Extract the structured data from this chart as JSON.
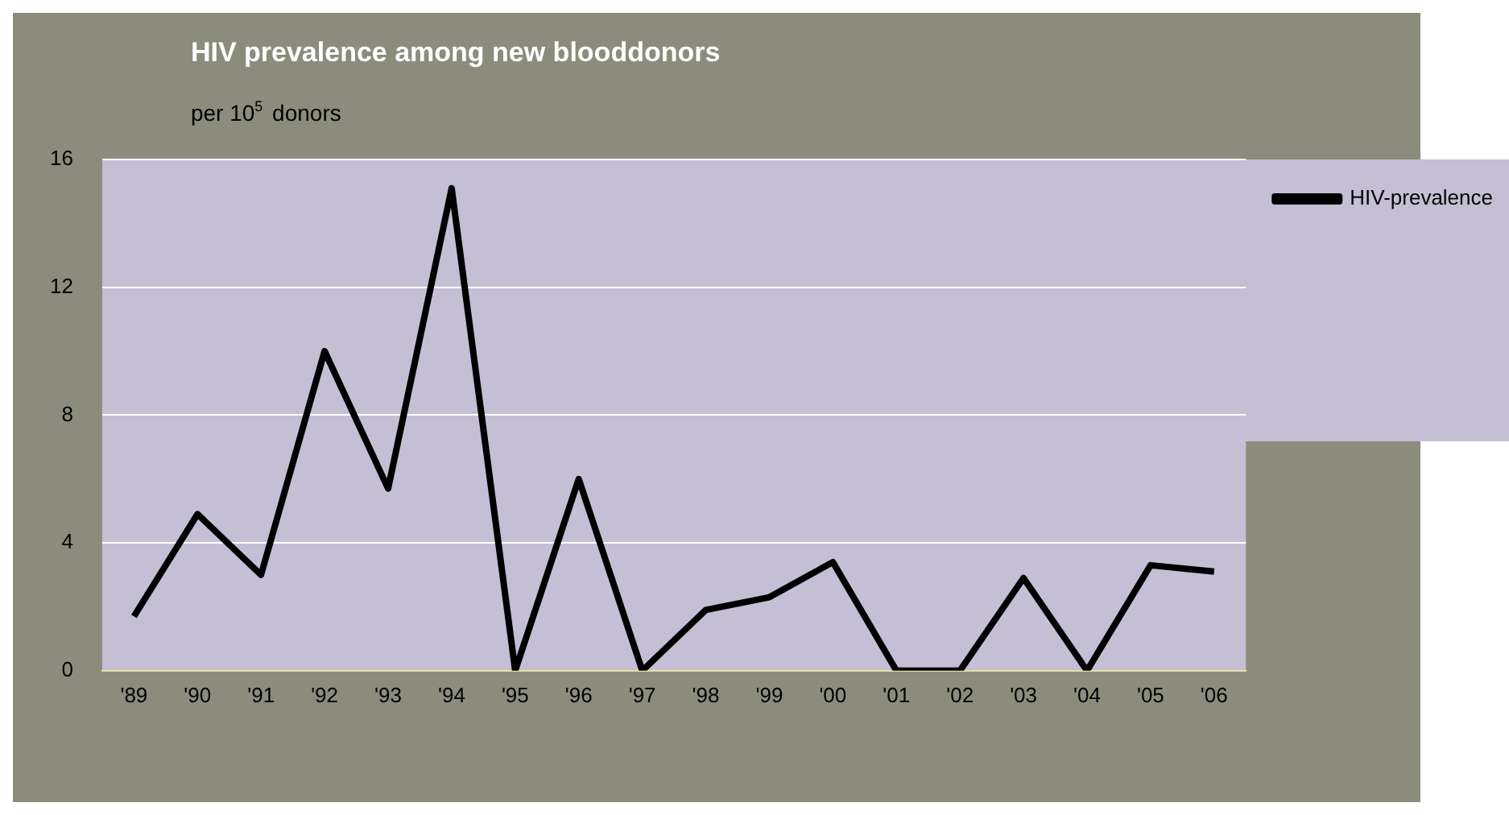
{
  "chart_data": {
    "type": "line",
    "title": "HIV prevalence among new blooddonors",
    "ylabel": "per 10$^{5}$ donors",
    "categories": [
      "'89",
      "'90",
      "'91",
      "'92",
      "'93",
      "'94",
      "'95",
      "'96",
      "'97",
      "'98",
      "'99",
      "'00",
      "'01",
      "'02",
      "'03",
      "'04",
      "'05",
      "'06"
    ],
    "series": [
      {
        "name": "HIV-prevalence",
        "color": "#000000",
        "values": [
          1.7,
          4.9,
          3.0,
          10.0,
          5.7,
          15.1,
          0,
          6.0,
          0,
          1.9,
          2.3,
          3.4,
          0,
          0,
          2.9,
          0,
          3.3,
          3.1
        ]
      }
    ],
    "ylim": [
      0,
      16
    ],
    "yticks": [
      0,
      4,
      8,
      12,
      16
    ],
    "grid": "y",
    "legend": "top right",
    "marker": "none",
    "line_style": "solid"
  }
}
